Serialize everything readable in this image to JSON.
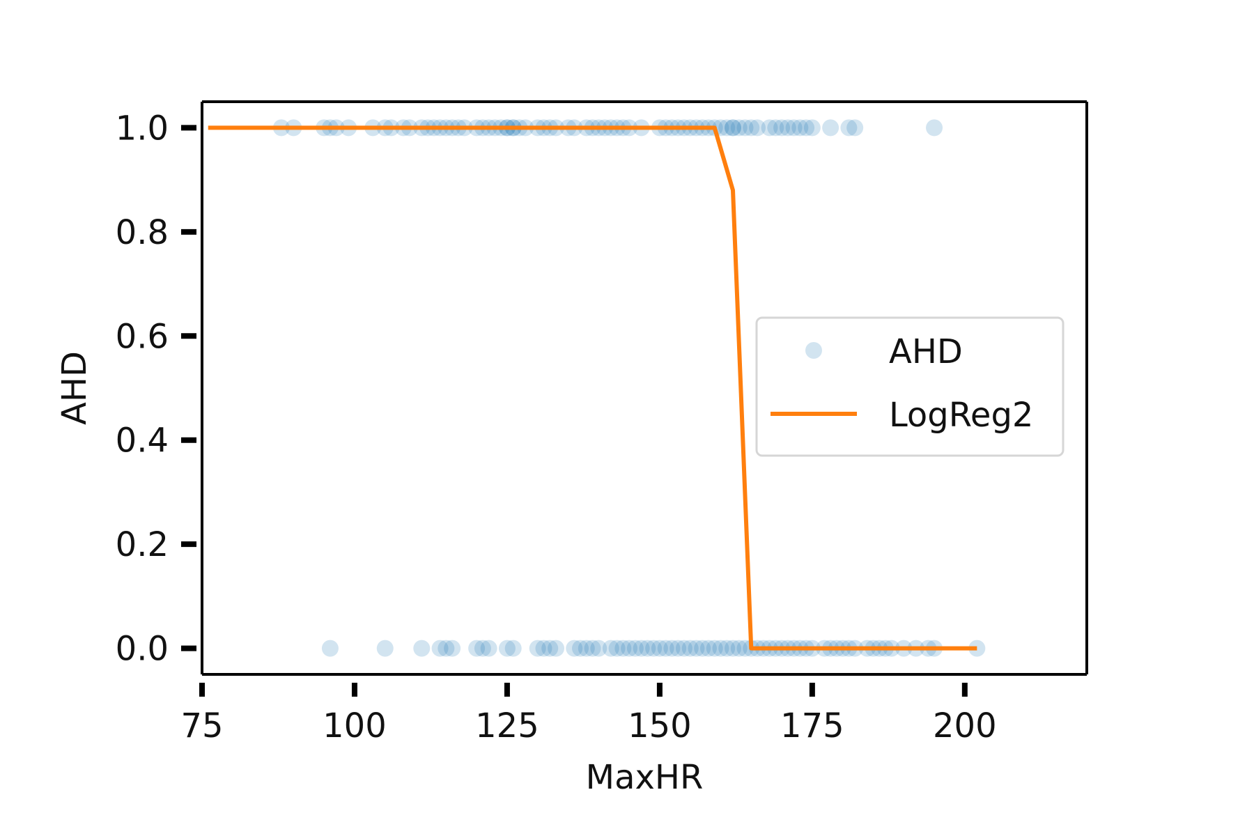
{
  "chart_data": {
    "type": "scatter",
    "title": "",
    "xlabel": "MaxHR",
    "ylabel": "AHD",
    "xlim": [
      75,
      220
    ],
    "ylim": [
      -0.05,
      1.05
    ],
    "xticks": [
      75,
      100,
      125,
      150,
      175,
      200
    ],
    "yticks": [
      0.0,
      0.2,
      0.4,
      0.6,
      0.8,
      1.0
    ],
    "xtick_labels": [
      "75",
      "100",
      "125",
      "150",
      "175",
      "200"
    ],
    "ytick_labels": [
      "0.0",
      "0.2",
      "0.4",
      "0.6",
      "0.8",
      "1.0"
    ],
    "grid": false,
    "legend_position": "center-right",
    "colors": {
      "scatter": "#1f77b4",
      "line": "#ff7f0e"
    },
    "series": [
      {
        "name": "AHD",
        "type": "scatter",
        "alpha": 0.2,
        "x": [
          88,
          90,
          95,
          96,
          97,
          99,
          103,
          105,
          106,
          108,
          109,
          111,
          112,
          113,
          114,
          115,
          116,
          117,
          118,
          120,
          121,
          122,
          123,
          124,
          125,
          125,
          126,
          126,
          127,
          128,
          130,
          131,
          132,
          133,
          135,
          136,
          138,
          139,
          140,
          141,
          142,
          143,
          144,
          145,
          147,
          150,
          151,
          152,
          153,
          154,
          155,
          156,
          157,
          158,
          159,
          160,
          161,
          162,
          162,
          163,
          164,
          165,
          166,
          168,
          169,
          170,
          171,
          172,
          173,
          174,
          175,
          178,
          181,
          182,
          195,
          96,
          105,
          111,
          114,
          115,
          116,
          120,
          121,
          122,
          125,
          126,
          130,
          131,
          132,
          133,
          136,
          137,
          138,
          139,
          140,
          142,
          143,
          144,
          145,
          146,
          147,
          148,
          149,
          150,
          151,
          152,
          153,
          154,
          155,
          156,
          157,
          158,
          159,
          160,
          161,
          162,
          163,
          164,
          165,
          166,
          167,
          168,
          169,
          170,
          171,
          172,
          173,
          174,
          175,
          177,
          178,
          179,
          180,
          181,
          182,
          184,
          185,
          186,
          187,
          188,
          190,
          192,
          194,
          195,
          202
        ],
        "y": [
          1,
          1,
          1,
          1,
          1,
          1,
          1,
          1,
          1,
          1,
          1,
          1,
          1,
          1,
          1,
          1,
          1,
          1,
          1,
          1,
          1,
          1,
          1,
          1,
          1,
          1,
          1,
          1,
          1,
          1,
          1,
          1,
          1,
          1,
          1,
          1,
          1,
          1,
          1,
          1,
          1,
          1,
          1,
          1,
          1,
          1,
          1,
          1,
          1,
          1,
          1,
          1,
          1,
          1,
          1,
          1,
          1,
          1,
          1,
          1,
          1,
          1,
          1,
          1,
          1,
          1,
          1,
          1,
          1,
          1,
          1,
          1,
          1,
          1,
          1,
          0,
          0,
          0,
          0,
          0,
          0,
          0,
          0,
          0,
          0,
          0,
          0,
          0,
          0,
          0,
          0,
          0,
          0,
          0,
          0,
          0,
          0,
          0,
          0,
          0,
          0,
          0,
          0,
          0,
          0,
          0,
          0,
          0,
          0,
          0,
          0,
          0,
          0,
          0,
          0,
          0,
          0,
          0,
          0,
          0,
          0,
          0,
          0,
          0,
          0,
          0,
          0,
          0,
          0,
          0,
          0,
          0,
          0,
          0,
          0,
          0,
          0,
          0,
          0,
          0,
          0,
          0,
          0,
          0,
          0
        ]
      },
      {
        "name": "LogReg2",
        "type": "line",
        "x": [
          76,
          159,
          162,
          165,
          202
        ],
        "y": [
          1.0,
          1.0,
          0.88,
          0.0,
          0.0
        ]
      }
    ]
  }
}
